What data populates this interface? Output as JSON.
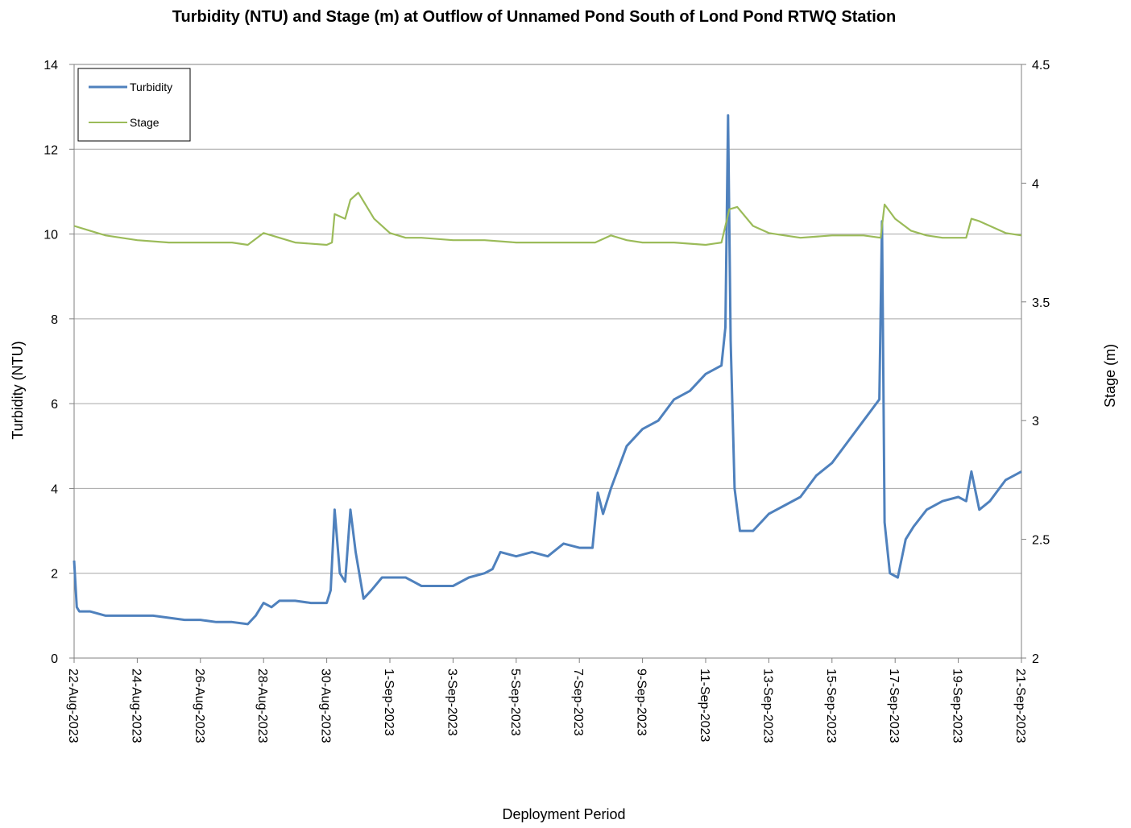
{
  "chart_data": {
    "type": "line",
    "title": "Turbidity (NTU) and Stage (m) at Outflow of Unnamed Pond South of Lond Pond RTWQ Station",
    "xlabel": "Deployment Period",
    "ylabel_left": "Turbidity (NTU)",
    "ylabel_right": "Stage (m)",
    "xlim": [
      "2023-08-22",
      "2023-09-21"
    ],
    "ylim_left": [
      0,
      14
    ],
    "ylim_right": [
      2,
      4.5
    ],
    "yticks_left": [
      "0",
      "2",
      "4",
      "6",
      "8",
      "10",
      "12",
      "14"
    ],
    "yticks_right": [
      "2",
      "2.5",
      "3",
      "3.5",
      "4",
      "4.5"
    ],
    "xticks": [
      "22-Aug-2023",
      "24-Aug-2023",
      "26-Aug-2023",
      "28-Aug-2023",
      "30-Aug-2023",
      "1-Sep-2023",
      "3-Sep-2023",
      "5-Sep-2023",
      "7-Sep-2023",
      "9-Sep-2023",
      "11-Sep-2023",
      "13-Sep-2023",
      "15-Sep-2023",
      "17-Sep-2023",
      "19-Sep-2023",
      "21-Sep-2023"
    ],
    "grid": true,
    "legend_position": "top-left",
    "series": [
      {
        "name": "Turbidity",
        "axis": "left",
        "color": "#4F81BD",
        "points": [
          [
            "2023-08-22 00:00",
            2.3
          ],
          [
            "2023-08-22 02:00",
            1.2
          ],
          [
            "2023-08-22 04:00",
            1.1
          ],
          [
            "2023-08-22 12:00",
            1.1
          ],
          [
            "2023-08-23 00:00",
            1.0
          ],
          [
            "2023-08-23 12:00",
            1.0
          ],
          [
            "2023-08-24 00:00",
            1.0
          ],
          [
            "2023-08-24 12:00",
            1.0
          ],
          [
            "2023-08-25 00:00",
            0.95
          ],
          [
            "2023-08-25 12:00",
            0.9
          ],
          [
            "2023-08-26 00:00",
            0.9
          ],
          [
            "2023-08-26 12:00",
            0.85
          ],
          [
            "2023-08-27 00:00",
            0.85
          ],
          [
            "2023-08-27 12:00",
            0.8
          ],
          [
            "2023-08-27 18:00",
            1.0
          ],
          [
            "2023-08-28 00:00",
            1.3
          ],
          [
            "2023-08-28 06:00",
            1.2
          ],
          [
            "2023-08-28 12:00",
            1.35
          ],
          [
            "2023-08-29 00:00",
            1.35
          ],
          [
            "2023-08-29 12:00",
            1.3
          ],
          [
            "2023-08-30 00:00",
            1.3
          ],
          [
            "2023-08-30 03:00",
            1.6
          ],
          [
            "2023-08-30 06:00",
            3.5
          ],
          [
            "2023-08-30 10:00",
            2.0
          ],
          [
            "2023-08-30 14:00",
            1.8
          ],
          [
            "2023-08-30 18:00",
            3.5
          ],
          [
            "2023-08-30 22:00",
            2.5
          ],
          [
            "2023-08-31 04:00",
            1.4
          ],
          [
            "2023-08-31 10:00",
            1.6
          ],
          [
            "2023-08-31 18:00",
            1.9
          ],
          [
            "2023-09-01 00:00",
            1.9
          ],
          [
            "2023-09-01 12:00",
            1.9
          ],
          [
            "2023-09-02 00:00",
            1.7
          ],
          [
            "2023-09-02 12:00",
            1.7
          ],
          [
            "2023-09-03 00:00",
            1.7
          ],
          [
            "2023-09-03 12:00",
            1.9
          ],
          [
            "2023-09-04 00:00",
            2.0
          ],
          [
            "2023-09-04 06:00",
            2.1
          ],
          [
            "2023-09-04 12:00",
            2.5
          ],
          [
            "2023-09-05 00:00",
            2.4
          ],
          [
            "2023-09-05 12:00",
            2.5
          ],
          [
            "2023-09-06 00:00",
            2.4
          ],
          [
            "2023-09-06 12:00",
            2.7
          ],
          [
            "2023-09-07 00:00",
            2.6
          ],
          [
            "2023-09-07 10:00",
            2.6
          ],
          [
            "2023-09-07 14:00",
            3.9
          ],
          [
            "2023-09-07 18:00",
            3.4
          ],
          [
            "2023-09-08 00:00",
            4.0
          ],
          [
            "2023-09-08 12:00",
            5.0
          ],
          [
            "2023-09-09 00:00",
            5.4
          ],
          [
            "2023-09-09 12:00",
            5.6
          ],
          [
            "2023-09-10 00:00",
            6.1
          ],
          [
            "2023-09-10 12:00",
            6.3
          ],
          [
            "2023-09-11 00:00",
            6.7
          ],
          [
            "2023-09-11 12:00",
            6.9
          ],
          [
            "2023-09-11 15:00",
            7.8
          ],
          [
            "2023-09-11 17:00",
            12.8
          ],
          [
            "2023-09-11 19:00",
            7.5
          ],
          [
            "2023-09-11 22:00",
            4.0
          ],
          [
            "2023-09-12 02:00",
            3.0
          ],
          [
            "2023-09-12 12:00",
            3.0
          ],
          [
            "2023-09-13 00:00",
            3.4
          ],
          [
            "2023-09-13 12:00",
            3.6
          ],
          [
            "2023-09-14 00:00",
            3.8
          ],
          [
            "2023-09-14 12:00",
            4.3
          ],
          [
            "2023-09-15 00:00",
            4.6
          ],
          [
            "2023-09-15 12:00",
            5.1
          ],
          [
            "2023-09-16 00:00",
            5.6
          ],
          [
            "2023-09-16 12:00",
            6.1
          ],
          [
            "2023-09-16 14:00",
            10.3
          ],
          [
            "2023-09-16 16:00",
            3.2
          ],
          [
            "2023-09-16 20:00",
            2.0
          ],
          [
            "2023-09-17 02:00",
            1.9
          ],
          [
            "2023-09-17 08:00",
            2.8
          ],
          [
            "2023-09-17 14:00",
            3.1
          ],
          [
            "2023-09-18 00:00",
            3.5
          ],
          [
            "2023-09-18 12:00",
            3.7
          ],
          [
            "2023-09-19 00:00",
            3.8
          ],
          [
            "2023-09-19 06:00",
            3.7
          ],
          [
            "2023-09-19 10:00",
            4.4
          ],
          [
            "2023-09-19 16:00",
            3.5
          ],
          [
            "2023-09-20 00:00",
            3.7
          ],
          [
            "2023-09-20 12:00",
            4.2
          ],
          [
            "2023-09-21 00:00",
            4.4
          ]
        ]
      },
      {
        "name": "Stage",
        "axis": "right",
        "color": "#9BBB59",
        "points": [
          [
            "2023-08-22 00:00",
            3.82
          ],
          [
            "2023-08-22 12:00",
            3.8
          ],
          [
            "2023-08-23 00:00",
            3.78
          ],
          [
            "2023-08-24 00:00",
            3.76
          ],
          [
            "2023-08-25 00:00",
            3.75
          ],
          [
            "2023-08-26 00:00",
            3.75
          ],
          [
            "2023-08-27 00:00",
            3.75
          ],
          [
            "2023-08-27 12:00",
            3.74
          ],
          [
            "2023-08-28 00:00",
            3.79
          ],
          [
            "2023-08-28 12:00",
            3.77
          ],
          [
            "2023-08-29 00:00",
            3.75
          ],
          [
            "2023-08-30 00:00",
            3.74
          ],
          [
            "2023-08-30 04:00",
            3.75
          ],
          [
            "2023-08-30 06:00",
            3.87
          ],
          [
            "2023-08-30 14:00",
            3.85
          ],
          [
            "2023-08-30 18:00",
            3.93
          ],
          [
            "2023-08-31 00:00",
            3.96
          ],
          [
            "2023-08-31 12:00",
            3.85
          ],
          [
            "2023-09-01 00:00",
            3.79
          ],
          [
            "2023-09-01 12:00",
            3.77
          ],
          [
            "2023-09-02 00:00",
            3.77
          ],
          [
            "2023-09-03 00:00",
            3.76
          ],
          [
            "2023-09-04 00:00",
            3.76
          ],
          [
            "2023-09-05 00:00",
            3.75
          ],
          [
            "2023-09-06 00:00",
            3.75
          ],
          [
            "2023-09-07 00:00",
            3.75
          ],
          [
            "2023-09-07 12:00",
            3.75
          ],
          [
            "2023-09-08 00:00",
            3.78
          ],
          [
            "2023-09-08 12:00",
            3.76
          ],
          [
            "2023-09-09 00:00",
            3.75
          ],
          [
            "2023-09-10 00:00",
            3.75
          ],
          [
            "2023-09-11 00:00",
            3.74
          ],
          [
            "2023-09-11 12:00",
            3.75
          ],
          [
            "2023-09-11 18:00",
            3.89
          ],
          [
            "2023-09-12 00:00",
            3.9
          ],
          [
            "2023-09-12 12:00",
            3.82
          ],
          [
            "2023-09-13 00:00",
            3.79
          ],
          [
            "2023-09-13 12:00",
            3.78
          ],
          [
            "2023-09-14 00:00",
            3.77
          ],
          [
            "2023-09-15 00:00",
            3.78
          ],
          [
            "2023-09-16 00:00",
            3.78
          ],
          [
            "2023-09-16 13:00",
            3.77
          ],
          [
            "2023-09-16 16:00",
            3.91
          ],
          [
            "2023-09-17 00:00",
            3.85
          ],
          [
            "2023-09-17 12:00",
            3.8
          ],
          [
            "2023-09-18 00:00",
            3.78
          ],
          [
            "2023-09-18 12:00",
            3.77
          ],
          [
            "2023-09-19 00:00",
            3.77
          ],
          [
            "2023-09-19 06:00",
            3.77
          ],
          [
            "2023-09-19 10:00",
            3.85
          ],
          [
            "2023-09-19 16:00",
            3.84
          ],
          [
            "2023-09-20 12:00",
            3.79
          ],
          [
            "2023-09-21 00:00",
            3.78
          ]
        ]
      }
    ]
  }
}
